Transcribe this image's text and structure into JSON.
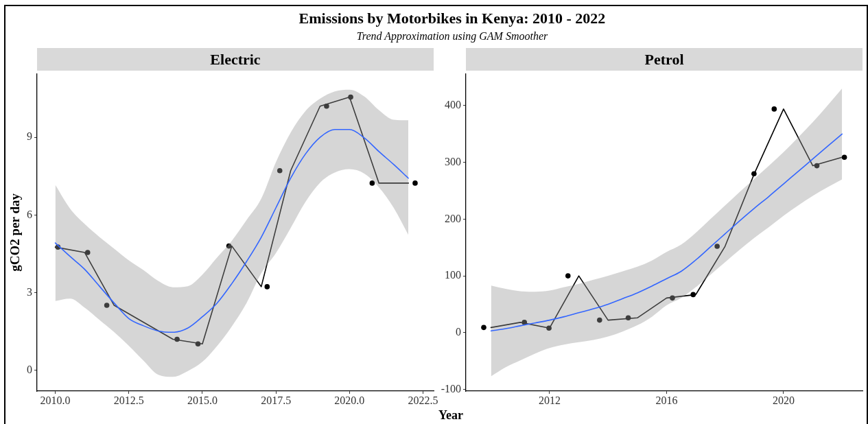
{
  "chart_data": [
    {
      "type": "other",
      "title": "Emissions by Motorbikes in Kenya: 2010 - 2022",
      "subtitle": "Trend Approximation using GAM Smoother"
    },
    {
      "type": "line",
      "title": "Electric",
      "ylabel": "gCO2 per day",
      "xlim": [
        2009.38,
        2022.86
      ],
      "ylim": [
        -0.8,
        11.45
      ],
      "xticks": [
        {
          "value": 2010,
          "label": "2010.0"
        },
        2012.5,
        {
          "value": 2015,
          "label": "2015.0"
        },
        2017.5,
        {
          "value": 2020,
          "label": "2020.0"
        },
        2022.5
      ],
      "yticks": [
        0,
        3,
        6,
        9
      ],
      "series": [
        {
          "type": "scatter",
          "color": "#000000",
          "marker": "circle",
          "x": [
            2010.09,
            2011.1,
            2011.75,
            2014.14,
            2014.85,
            2015.9,
            2017.2,
            2017.63,
            2019.22,
            2020.04,
            2020.77,
            2022.23
          ],
          "values": [
            4.76,
            4.55,
            2.51,
            1.2,
            1.02,
            4.8,
            3.23,
            7.71,
            10.2,
            10.55,
            7.23,
            7.23
          ]
        },
        {
          "type": "line",
          "color": "#000000",
          "x": [
            2010,
            2011,
            2012,
            2014,
            2015,
            2016,
            2017,
            2018,
            2019,
            2020,
            2021,
            2022
          ],
          "values": [
            4.76,
            4.55,
            2.51,
            1.2,
            1.02,
            4.8,
            3.23,
            7.71,
            10.2,
            10.55,
            7.23,
            7.23
          ]
        },
        {
          "type": "line",
          "color": "#3366ff",
          "x": [
            2010,
            2010.5,
            2011,
            2011.5,
            2012,
            2012.5,
            2013,
            2013.5,
            2014,
            2014.5,
            2015,
            2015.5,
            2016,
            2016.5,
            2017,
            2017.5,
            2018,
            2018.5,
            2019,
            2019.5,
            2020,
            2020.5,
            2021,
            2021.5,
            2022
          ],
          "values": [
            4.92,
            4.4,
            3.9,
            3.25,
            2.6,
            2.0,
            1.72,
            1.52,
            1.47,
            1.63,
            2.07,
            2.6,
            3.35,
            4.2,
            5.14,
            6.28,
            7.42,
            8.35,
            9.0,
            9.3,
            9.3,
            8.98,
            8.45,
            7.95,
            7.42
          ],
          "upper": [
            7.16,
            6.25,
            5.65,
            5.15,
            4.7,
            4.25,
            3.87,
            3.45,
            3.21,
            3.25,
            3.7,
            4.36,
            5.0,
            5.8,
            6.63,
            8.04,
            9.18,
            10.01,
            10.49,
            10.77,
            10.84,
            10.58,
            10.05,
            9.68,
            9.66
          ],
          "lower": [
            2.68,
            2.77,
            2.42,
            1.95,
            1.48,
            0.95,
            0.37,
            -0.17,
            -0.25,
            -0.03,
            0.33,
            0.94,
            1.7,
            2.6,
            3.75,
            4.53,
            5.5,
            6.5,
            7.25,
            7.64,
            7.77,
            7.6,
            7.07,
            6.28,
            5.23
          ]
        }
      ]
    },
    {
      "type": "line",
      "title": "Petrol",
      "xlabel": "Year",
      "xlim": [
        2009.14,
        2022.7
      ],
      "ylim": [
        -103,
        456
      ],
      "xticks": [
        2012,
        2016,
        2020
      ],
      "yticks": [
        -100,
        0,
        100,
        200,
        300,
        400
      ],
      "series": [
        {
          "type": "scatter",
          "color": "#000000",
          "marker": "circle",
          "x": [
            2009.75,
            2011.14,
            2011.98,
            2012.63,
            2013.71,
            2014.69,
            2016.2,
            2016.91,
            2017.73,
            2018.99,
            2019.68,
            2021.14,
            2022.08
          ],
          "values": [
            9,
            18,
            8,
            100,
            22,
            26,
            61,
            67,
            152,
            280,
            394,
            294,
            309
          ]
        },
        {
          "type": "line",
          "color": "#000000",
          "x": [
            2010,
            2011,
            2012,
            2013,
            2014,
            2015,
            2016,
            2017,
            2018,
            2019,
            2020,
            2021,
            2022
          ],
          "values": [
            9,
            18,
            8,
            100,
            22,
            26,
            61,
            67,
            152,
            280,
            394,
            294,
            309
          ]
        },
        {
          "type": "line",
          "color": "#3366ff",
          "x": [
            2010,
            2010.5,
            2011,
            2011.5,
            2012,
            2012.5,
            2013,
            2013.5,
            2014,
            2014.5,
            2015,
            2015.5,
            2016,
            2016.5,
            2017,
            2017.5,
            2018,
            2018.5,
            2019,
            2019.5,
            2020,
            2020.5,
            2021,
            2021.5,
            2022
          ],
          "values": [
            3,
            7,
            12,
            17,
            22,
            28,
            35,
            42,
            50,
            60,
            70,
            82,
            95,
            108,
            128,
            151,
            174,
            197,
            219,
            240,
            262,
            284,
            306,
            328,
            350
          ],
          "upper": [
            83,
            77,
            73,
            72,
            74,
            80,
            86,
            93,
            100,
            108,
            116,
            127,
            142,
            155,
            176,
            200,
            224,
            248,
            271,
            294,
            318,
            344,
            371,
            400,
            430
          ],
          "lower": [
            -77,
            -61,
            -49,
            -37,
            -27,
            -21,
            -17,
            -13,
            -7,
            2,
            13,
            28,
            48,
            61,
            80,
            102,
            124,
            146,
            167,
            186,
            206,
            224,
            241,
            256,
            270
          ]
        }
      ]
    }
  ]
}
